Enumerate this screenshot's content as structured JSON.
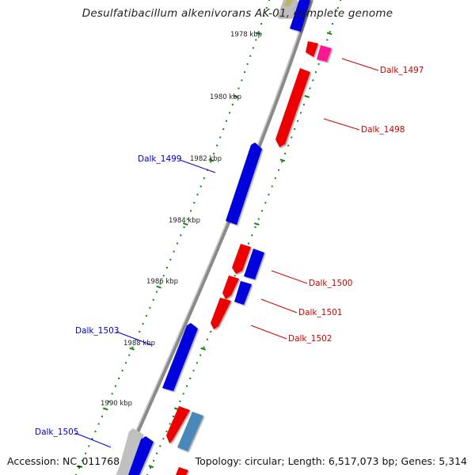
{
  "header": {
    "title": "Desulfatibacillum alkenivorans AK-01, complete genome"
  },
  "footer": {
    "accession": "Accession: NC_011768",
    "topology": "Topology: circular; Length: 6,517,073 bp; Genes: 5,314"
  },
  "map": {
    "colors": {
      "forward_strand": "#ee0000",
      "reverse_strand": "#0000dd",
      "tick": "#118811",
      "backbone": "#888888"
    },
    "ticks": [
      {
        "label": "1978 kbp"
      },
      {
        "label": "1980 kbp"
      },
      {
        "label": "1982 kbp"
      },
      {
        "label": "1984 kbp"
      },
      {
        "label": "1986 kbp"
      },
      {
        "label": "1988 kbp"
      },
      {
        "label": "1990 kbp"
      }
    ],
    "gene_labels": [
      {
        "name": "Dalk_1497",
        "strand": "forward"
      },
      {
        "name": "Dalk_1498",
        "strand": "forward"
      },
      {
        "name": "Dalk_1499",
        "strand": "reverse"
      },
      {
        "name": "Dalk_1500",
        "strand": "forward"
      },
      {
        "name": "Dalk_1501",
        "strand": "forward"
      },
      {
        "name": "Dalk_1502",
        "strand": "forward"
      },
      {
        "name": "Dalk_1503",
        "strand": "reverse"
      },
      {
        "name": "Dalk_1505",
        "strand": "reverse"
      }
    ]
  }
}
